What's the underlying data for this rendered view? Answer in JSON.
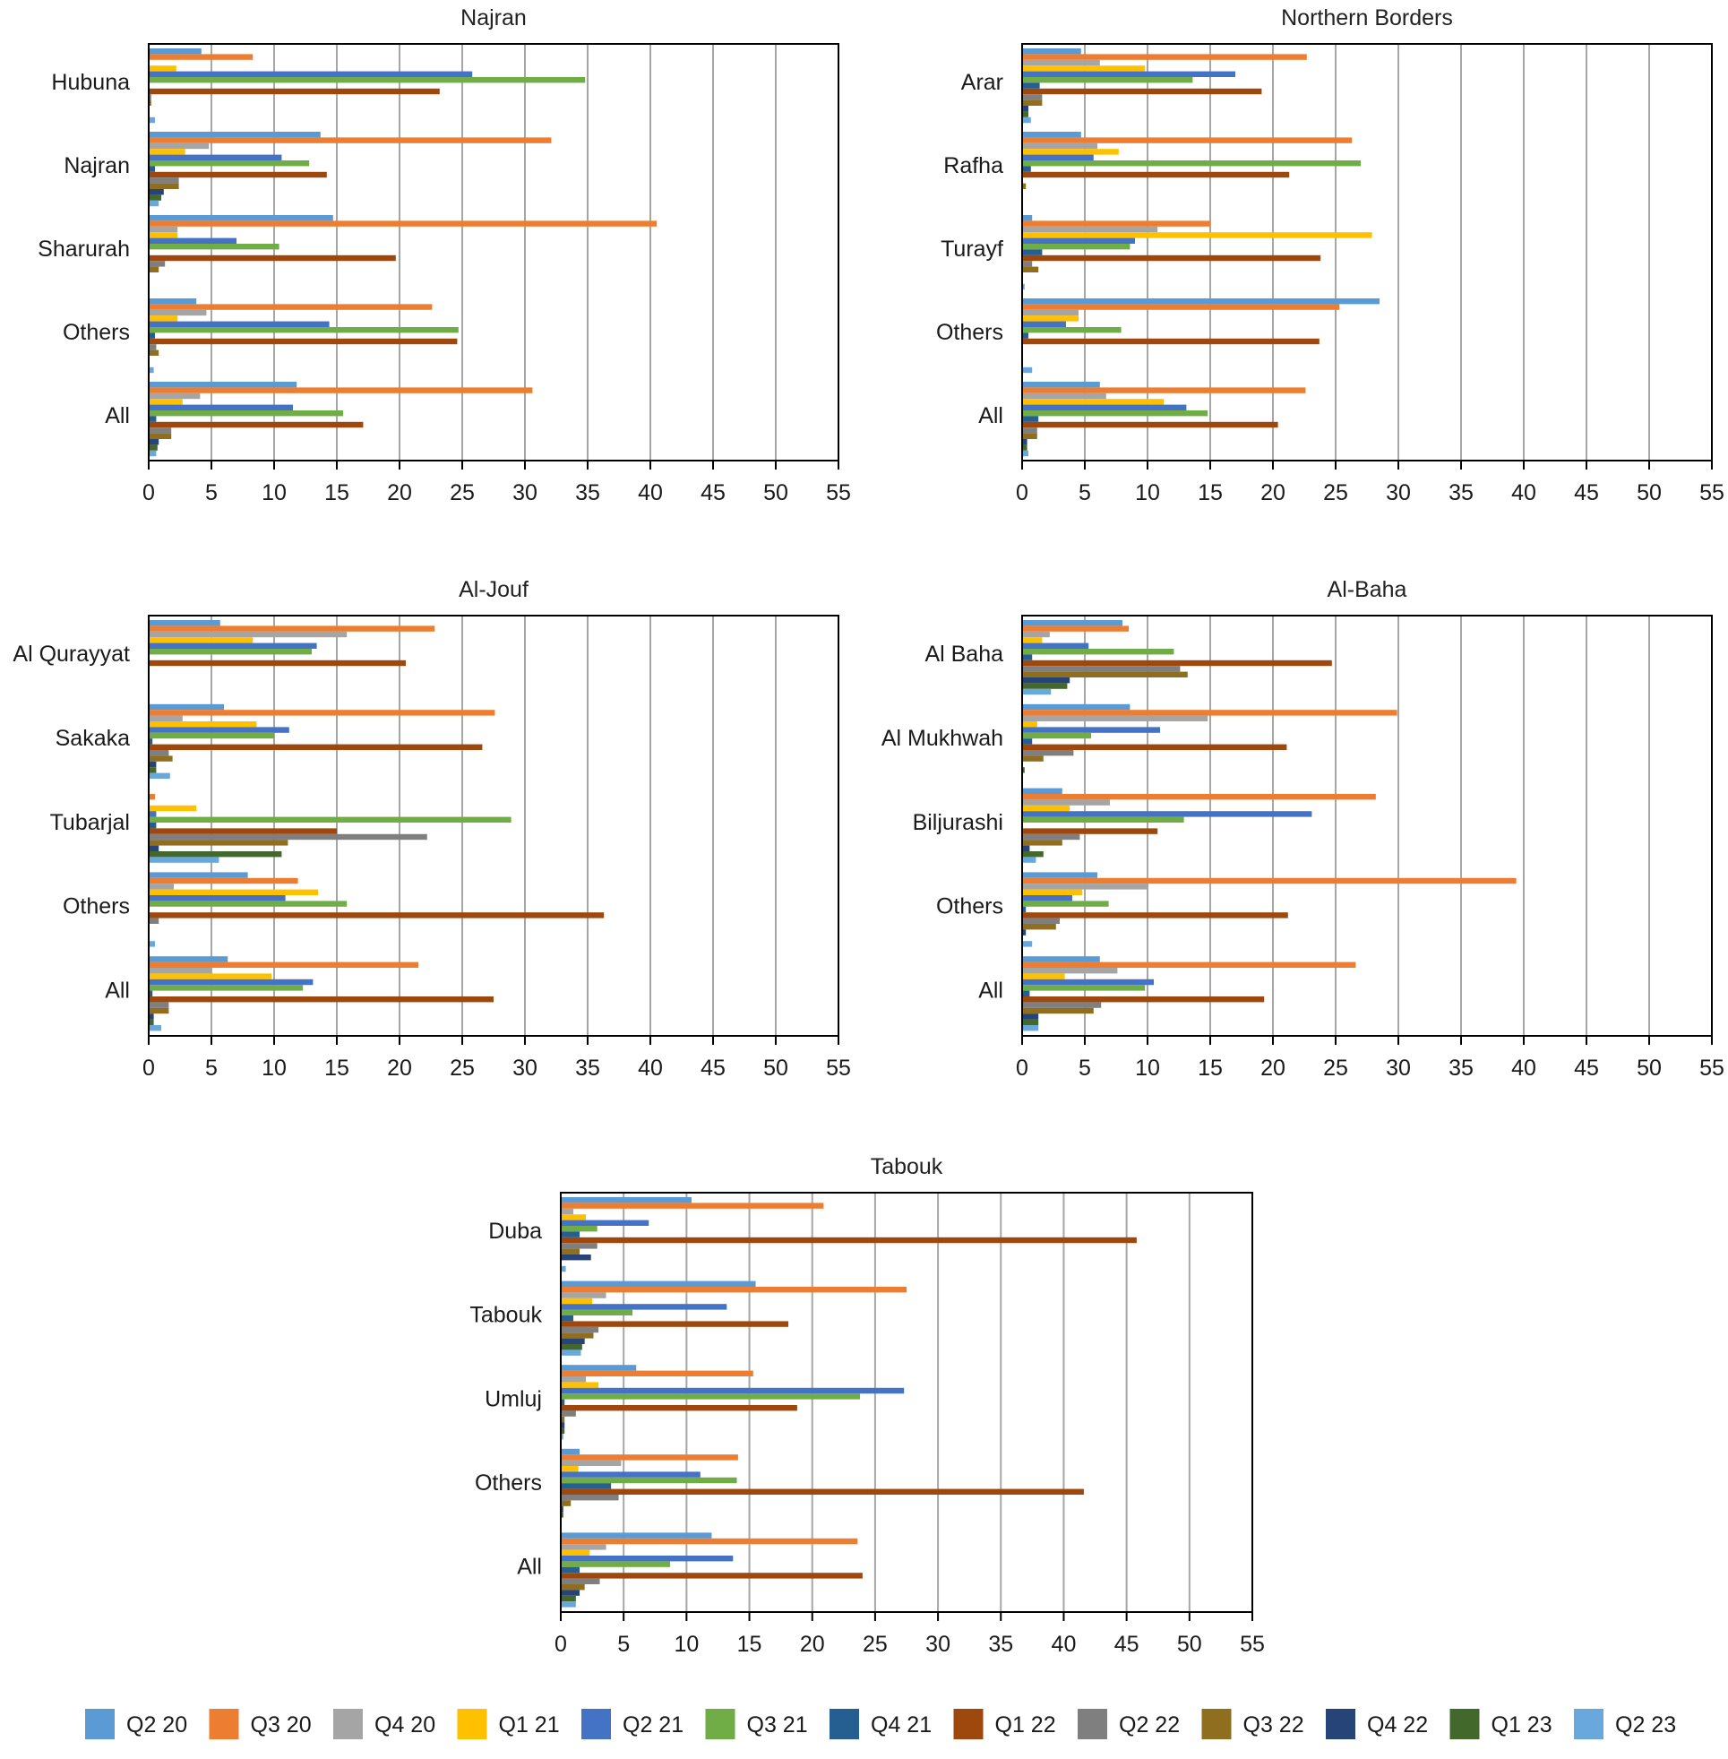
{
  "legend": {
    "items": [
      {
        "label": "Q2 20",
        "color": "#5b9bd5"
      },
      {
        "label": "Q3 20",
        "color": "#ed7d31"
      },
      {
        "label": "Q4 20",
        "color": "#a5a5a5"
      },
      {
        "label": "Q1 21",
        "color": "#ffc000"
      },
      {
        "label": "Q2 21",
        "color": "#4472c4"
      },
      {
        "label": "Q3 21",
        "color": "#70ad47"
      },
      {
        "label": "Q4 21",
        "color": "#255e91"
      },
      {
        "label": "Q1 22",
        "color": "#9e480e"
      },
      {
        "label": "Q2 22",
        "color": "#7f7f7f"
      },
      {
        "label": "Q3 22",
        "color": "#8f6f1f"
      },
      {
        "label": "Q4 22",
        "color": "#264478"
      },
      {
        "label": "Q1 23",
        "color": "#43682b"
      },
      {
        "label": "Q2 23",
        "color": "#69a8dc"
      }
    ]
  },
  "chart_data": [
    {
      "type": "bar",
      "orientation": "horizontal",
      "title": "Najran",
      "categories": [
        "Hubuna",
        "Najran",
        "Sharurah",
        "Others",
        "All"
      ],
      "xlim": [
        0,
        55
      ],
      "xticks": [
        0,
        5,
        10,
        15,
        20,
        25,
        30,
        35,
        40,
        45,
        50,
        55
      ],
      "grid": true,
      "values": [
        [
          4.2,
          8.3,
          0,
          2.2,
          25.8,
          34.8,
          0,
          23.2,
          0.2,
          0.2,
          0,
          0,
          0.5
        ],
        [
          13.7,
          32.1,
          4.8,
          2.9,
          10.6,
          12.8,
          0.5,
          14.2,
          2.4,
          2.4,
          1.2,
          1,
          0.8
        ],
        [
          14.7,
          40.5,
          2.3,
          2.3,
          7,
          10.4,
          0,
          19.7,
          1.3,
          0.8,
          0,
          0,
          0
        ],
        [
          3.8,
          22.6,
          4.6,
          2.3,
          14.4,
          24.7,
          0.5,
          24.6,
          0.6,
          0.8,
          0,
          0,
          0.4
        ],
        [
          11.8,
          30.6,
          4.1,
          2.7,
          11.5,
          15.5,
          0.6,
          17.1,
          1.8,
          1.8,
          0.8,
          0.7,
          0.6
        ]
      ]
    },
    {
      "type": "bar",
      "orientation": "horizontal",
      "title": "Northern Borders",
      "categories": [
        "Arar",
        "Rafha",
        "Turayf",
        "Others",
        "All"
      ],
      "xlim": [
        0,
        55
      ],
      "xticks": [
        0,
        5,
        10,
        15,
        20,
        25,
        30,
        35,
        40,
        45,
        50,
        55
      ],
      "grid": true,
      "values": [
        [
          4.7,
          22.7,
          6.2,
          9.8,
          17,
          13.6,
          1.4,
          19.1,
          1.6,
          1.6,
          0.5,
          0.5,
          0.7
        ],
        [
          4.7,
          26.3,
          6,
          7.7,
          5.7,
          27,
          0.7,
          21.3,
          0,
          0.3,
          0,
          0,
          0
        ],
        [
          0.8,
          15,
          10.8,
          27.9,
          9,
          8.6,
          1.6,
          23.8,
          0.8,
          1.3,
          0,
          0,
          0.2
        ],
        [
          28.5,
          25.3,
          4.5,
          4.5,
          3.5,
          7.9,
          0.5,
          23.7,
          0,
          0,
          0,
          0,
          0.8
        ],
        [
          6.2,
          22.6,
          6.7,
          11.3,
          13.1,
          14.8,
          1.3,
          20.4,
          1.2,
          1.2,
          0.4,
          0.4,
          0.5
        ]
      ]
    },
    {
      "type": "bar",
      "orientation": "horizontal",
      "title": "Al-Jouf",
      "categories": [
        "Al Qurayyat",
        "Sakaka",
        "Tubarjal",
        "Others",
        "All"
      ],
      "xlim": [
        0,
        55
      ],
      "xticks": [
        0,
        5,
        10,
        15,
        20,
        25,
        30,
        35,
        40,
        45,
        50,
        55
      ],
      "grid": true,
      "values": [
        [
          5.7,
          22.8,
          15.8,
          8.3,
          13.4,
          13,
          0,
          20.5,
          0,
          0,
          0,
          0,
          0
        ],
        [
          6,
          27.6,
          2.7,
          8.6,
          11.2,
          10,
          0.3,
          26.6,
          1.6,
          1.9,
          0.6,
          0.6,
          1.7
        ],
        [
          0,
          0.5,
          0,
          3.8,
          0.6,
          28.9,
          0.6,
          15,
          22.2,
          11.1,
          0.8,
          10.6,
          5.6
        ],
        [
          7.9,
          11.9,
          2,
          13.5,
          10.9,
          15.8,
          0,
          36.3,
          0.8,
          0,
          0,
          0,
          0.5
        ],
        [
          6.3,
          21.5,
          5,
          9.8,
          13.1,
          12.3,
          0.3,
          27.5,
          1.6,
          1.6,
          0.4,
          0.4,
          1
        ]
      ]
    },
    {
      "type": "bar",
      "orientation": "horizontal",
      "title": "Al-Baha",
      "categories": [
        "Al Baha",
        "Al Mukhwah",
        "Biljurashi",
        "Others",
        "All"
      ],
      "xlim": [
        0,
        55
      ],
      "xticks": [
        0,
        5,
        10,
        15,
        20,
        25,
        30,
        35,
        40,
        45,
        50,
        55
      ],
      "grid": true,
      "values": [
        [
          8,
          8.5,
          2.2,
          1.6,
          5.3,
          12.1,
          0.8,
          24.7,
          12.6,
          13.2,
          3.8,
          3.6,
          2.3
        ],
        [
          8.6,
          29.9,
          14.8,
          1.2,
          11,
          5.5,
          0.8,
          21.1,
          4.1,
          1.7,
          0,
          0.2,
          0
        ],
        [
          3.2,
          28.2,
          7,
          3.8,
          23.1,
          12.9,
          0,
          10.8,
          4.6,
          3.2,
          0.6,
          1.7,
          1.1
        ],
        [
          6,
          39.4,
          10,
          4.8,
          4,
          6.9,
          0.3,
          21.2,
          3,
          2.7,
          0.3,
          0,
          0.8
        ],
        [
          6.2,
          26.6,
          7.6,
          3.4,
          10.5,
          9.8,
          0.6,
          19.3,
          6.3,
          5.7,
          1.3,
          1.3,
          1.3
        ]
      ]
    },
    {
      "type": "bar",
      "orientation": "horizontal",
      "title": "Tabouk",
      "categories": [
        "Duba",
        "Tabouk",
        "Umluj",
        "Others",
        "All"
      ],
      "xlim": [
        0,
        55
      ],
      "xticks": [
        0,
        5,
        10,
        15,
        20,
        25,
        30,
        35,
        40,
        45,
        50,
        55
      ],
      "grid": true,
      "values": [
        [
          10.4,
          20.9,
          1,
          2,
          7,
          2.9,
          1.5,
          45.8,
          2.9,
          1.5,
          2.4,
          0,
          0.4
        ],
        [
          15.5,
          27.5,
          3.6,
          2.5,
          13.2,
          5.7,
          1,
          18.1,
          3,
          2.6,
          1.9,
          1.7,
          1.6
        ],
        [
          6,
          15.3,
          2,
          3,
          27.3,
          23.8,
          0.3,
          18.8,
          1.2,
          0.3,
          0.3,
          0.3,
          0.2
        ],
        [
          1.5,
          14.1,
          4.8,
          1.4,
          11.1,
          14,
          4,
          41.6,
          4.6,
          0.8,
          0.2,
          0.2,
          0
        ],
        [
          12,
          23.6,
          3.6,
          2.3,
          13.7,
          8.7,
          1.5,
          24,
          3.1,
          1.9,
          1.5,
          1.2,
          1.2
        ]
      ]
    }
  ]
}
